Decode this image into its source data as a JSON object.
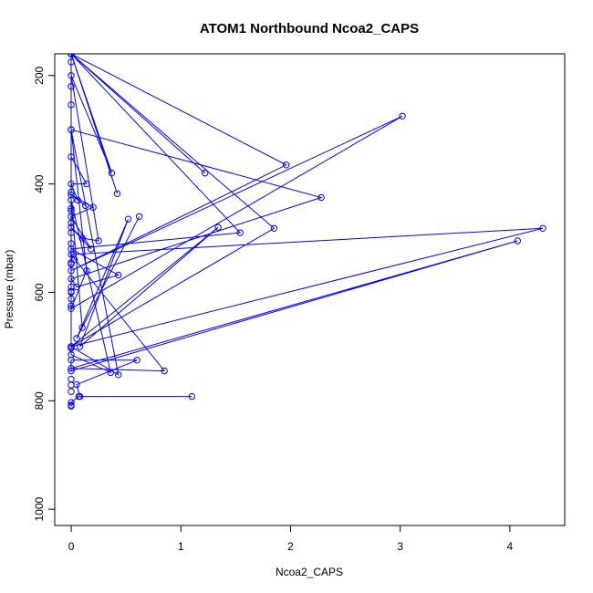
{
  "chart_data": {
    "type": "line",
    "title": "ATOM1 Northbound Ncoa2_CAPS",
    "xlabel": "Ncoa2_CAPS",
    "ylabel": "Pressure (mbar)",
    "xlim": [
      -0.15,
      4.5
    ],
    "ylim": [
      1030,
      160
    ],
    "y_reversed": true,
    "xticks": [
      0,
      1,
      2,
      3,
      4
    ],
    "yticks": [
      200,
      400,
      600,
      800,
      1000
    ],
    "grid": false,
    "colors": {
      "series": "#0000ff"
    },
    "series": [
      {
        "name": "",
        "points": [
          [
            0.0,
            810
          ],
          [
            0.0,
            808
          ],
          [
            0.0,
            803
          ],
          [
            0.07,
            792
          ],
          [
            1.1,
            792
          ],
          [
            0.08,
            792
          ],
          [
            0.05,
            770
          ],
          [
            0.6,
            725
          ],
          [
            0.0,
            725
          ],
          [
            0.0,
            745
          ],
          [
            4.07,
            505
          ],
          [
            0.0,
            740
          ],
          [
            0.85,
            745
          ],
          [
            0.0,
            530
          ],
          [
            4.3,
            482
          ],
          [
            0.0,
            700
          ],
          [
            0.43,
            752
          ],
          [
            0.0,
            300
          ],
          [
            0.0,
            715
          ],
          [
            0.36,
            748
          ],
          [
            0.0,
            430
          ],
          [
            0.1,
            665
          ],
          [
            0.62,
            460
          ],
          [
            0.05,
            685
          ],
          [
            0.52,
            465
          ],
          [
            0.08,
            700
          ],
          [
            1.34,
            480
          ],
          [
            0.0,
            700
          ],
          [
            1.85,
            482
          ],
          [
            0.0,
            160
          ],
          [
            1.54,
            490
          ],
          [
            0.0,
            520
          ],
          [
            0.43,
            568
          ],
          [
            0.05,
            590
          ],
          [
            0.0,
            575
          ],
          [
            2.28,
            425
          ],
          [
            0.0,
            300
          ],
          [
            0.14,
            560
          ],
          [
            0.0,
            630
          ],
          [
            3.02,
            275
          ],
          [
            0.0,
            560
          ],
          [
            1.96,
            365
          ],
          [
            0.0,
            160
          ],
          [
            1.22,
            380
          ],
          [
            0.0,
            160
          ],
          [
            0.42,
            418
          ],
          [
            0.0,
            160
          ],
          [
            0.37,
            380
          ],
          [
            0.0,
            200
          ],
          [
            0.25,
            505
          ],
          [
            0.1,
            500
          ],
          [
            0.0,
            480
          ],
          [
            0.18,
            520
          ],
          [
            0.0,
            460
          ],
          [
            0.2,
            443
          ],
          [
            0.0,
            420
          ],
          [
            0.13,
            440
          ],
          [
            0.06,
            430
          ],
          [
            0.0,
            400
          ],
          [
            0.14,
            400
          ],
          [
            0.0,
            350
          ],
          [
            0.0,
            254
          ],
          [
            0.0,
            220
          ],
          [
            0.0,
            175
          ],
          [
            0.0,
            160
          ]
        ]
      }
    ],
    "extra_points": [
      [
        0.0,
        600
      ],
      [
        0.0,
        612
      ],
      [
        0.0,
        625
      ],
      [
        0.0,
        545
      ],
      [
        0.0,
        548
      ],
      [
        0.0,
        590
      ],
      [
        0.0,
        598
      ],
      [
        0.0,
        510
      ],
      [
        0.0,
        490
      ],
      [
        0.0,
        472
      ],
      [
        0.0,
        450
      ],
      [
        0.0,
        445
      ],
      [
        0.0,
        415
      ],
      [
        0.0,
        700
      ],
      [
        0.0,
        703
      ],
      [
        0.0,
        760
      ],
      [
        0.0,
        771
      ],
      [
        0.0,
        783
      ],
      [
        0.02,
        530
      ],
      [
        0.03,
        540
      ]
    ]
  }
}
